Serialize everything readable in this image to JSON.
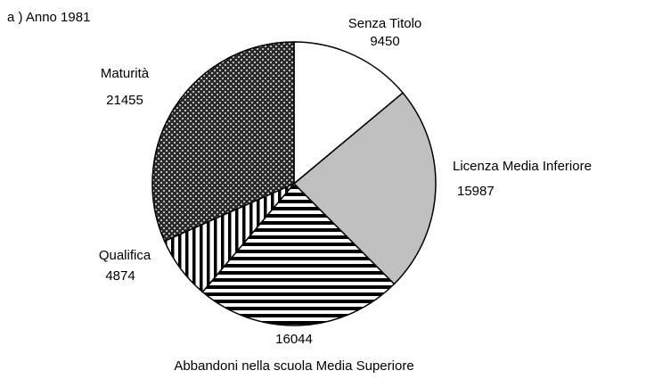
{
  "chart_data": {
    "type": "pie",
    "title": "a ) Anno 1981",
    "categories": [
      "Senza Titolo",
      "Licenza Media Inferiore",
      "Abbandoni nella scuola Media Superiore",
      "Qualifica",
      "Maturità"
    ],
    "values": [
      9450,
      15987,
      16044,
      4874,
      21455
    ],
    "colors": [
      "#ffffff",
      "#c0c0c0",
      "#000000",
      "#000000",
      "#2a2a2a"
    ],
    "patterns": [
      "none",
      "none",
      "horizontal-lines",
      "vertical-lines",
      "checker"
    ]
  }
}
